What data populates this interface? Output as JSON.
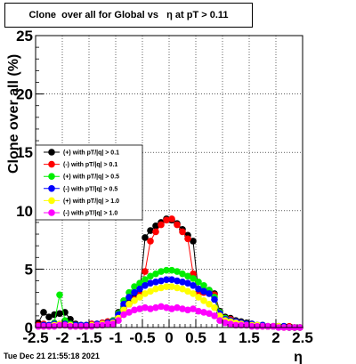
{
  "title": "Clone  over all for Global vs   η at pT > 0.11",
  "footer": "Tue Dec 21 21:55:18 2021",
  "chart_data": {
    "type": "scatter",
    "title": "Clone  over all for Global vs   η at pT > 0.11",
    "xlabel": "η",
    "ylabel": "Clone  over all (%)",
    "xlim": [
      -2.5,
      2.5
    ],
    "ylim": [
      0,
      25
    ],
    "x_ticks": [
      "-2.5",
      "-2",
      "-1.5",
      "-1",
      "-0.5",
      "0",
      "0.5",
      "1",
      "1.5",
      "2",
      "2.5"
    ],
    "y_ticks": [
      "0",
      "5",
      "10",
      "15",
      "20",
      "25"
    ],
    "grid": true,
    "legend_position": "center-left",
    "series": [
      {
        "name": "(+) with pT/|q| > 0.1",
        "color": "#000000",
        "x": [
          -2.45,
          -2.35,
          -2.25,
          -2.15,
          -2.05,
          -1.95,
          -1.85,
          -1.75,
          -1.65,
          -1.55,
          -1.45,
          -1.35,
          -1.25,
          -1.15,
          -1.05,
          -0.95,
          -0.85,
          -0.75,
          -0.65,
          -0.55,
          -0.45,
          -0.35,
          -0.25,
          -0.15,
          -0.05,
          0.05,
          0.15,
          0.25,
          0.35,
          0.45,
          0.55,
          0.65,
          0.75,
          0.85,
          0.95,
          1.05,
          1.15,
          1.25,
          1.35,
          1.45,
          1.55,
          1.65,
          1.75,
          1.85,
          1.95,
          2.05,
          2.15,
          2.25,
          2.35,
          2.45
        ],
        "y": [
          0.4,
          1.3,
          0.9,
          1.1,
          1.2,
          1.3,
          0.7,
          0.3,
          0.2,
          0.2,
          0.3,
          0.3,
          0.4,
          0.5,
          0.6,
          1.3,
          1.8,
          2.1,
          2.6,
          2.9,
          7.7,
          8.3,
          8.7,
          9.0,
          9.3,
          9.2,
          8.9,
          8.4,
          7.9,
          7.4,
          3.0,
          3.1,
          3.2,
          2.9,
          1.4,
          0.9,
          0.8,
          0.6,
          0.5,
          0.4,
          0.3,
          0.2,
          0.2,
          0.1,
          0.1,
          0.1,
          0.1,
          0.0,
          0.0,
          0.0
        ]
      },
      {
        "name": "(-) with pT/|q| > 0.1",
        "color": "#ff0000",
        "x": [
          -2.45,
          -2.35,
          -2.25,
          -2.15,
          -2.05,
          -1.95,
          -1.85,
          -1.75,
          -1.65,
          -1.55,
          -1.45,
          -1.35,
          -1.25,
          -1.15,
          -1.05,
          -0.95,
          -0.85,
          -0.75,
          -0.65,
          -0.55,
          -0.45,
          -0.35,
          -0.25,
          -0.15,
          -0.05,
          0.05,
          0.15,
          0.25,
          0.35,
          0.45,
          0.55,
          0.65,
          0.75,
          0.85,
          0.95,
          1.05,
          1.15,
          1.25,
          1.35,
          1.45,
          1.55,
          1.65,
          1.75,
          1.85,
          1.95,
          2.05,
          2.15,
          2.25,
          2.35,
          2.45
        ],
        "y": [
          0.2,
          0.3,
          0.2,
          0.2,
          0.2,
          0.3,
          0.2,
          0.2,
          0.2,
          0.2,
          0.3,
          0.3,
          0.4,
          0.5,
          0.6,
          1.2,
          1.6,
          2.0,
          2.4,
          2.8,
          4.8,
          7.4,
          8.2,
          8.8,
          9.2,
          9.3,
          8.8,
          8.2,
          7.6,
          4.6,
          2.9,
          3.0,
          3.1,
          2.8,
          1.3,
          0.8,
          0.7,
          0.5,
          0.4,
          0.3,
          0.3,
          0.2,
          0.2,
          0.1,
          0.1,
          0.1,
          0.1,
          0.1,
          0.0,
          0.0
        ]
      },
      {
        "name": "(+) with pT/|q| > 0.5",
        "color": "#00ee00",
        "x": [
          -2.45,
          -2.35,
          -2.25,
          -2.15,
          -2.05,
          -1.95,
          -1.85,
          -1.75,
          -1.65,
          -1.55,
          -1.45,
          -1.35,
          -1.25,
          -1.15,
          -1.05,
          -0.95,
          -0.85,
          -0.75,
          -0.65,
          -0.55,
          -0.45,
          -0.35,
          -0.25,
          -0.15,
          -0.05,
          0.05,
          0.15,
          0.25,
          0.35,
          0.45,
          0.55,
          0.65,
          0.75,
          0.85,
          0.95,
          1.05,
          1.15,
          1.25,
          1.35,
          1.45,
          1.55,
          1.65,
          1.75,
          1.85,
          1.95,
          2.05,
          2.15,
          2.25,
          2.35,
          2.45
        ],
        "y": [
          0.1,
          0.2,
          0.2,
          0.4,
          2.8,
          0.6,
          0.3,
          0.2,
          0.2,
          0.2,
          0.2,
          0.3,
          0.3,
          0.4,
          0.6,
          1.2,
          2.3,
          3.0,
          3.5,
          3.8,
          4.1,
          4.4,
          4.6,
          4.8,
          4.9,
          4.9,
          4.8,
          4.6,
          4.4,
          4.2,
          3.9,
          3.6,
          3.2,
          2.6,
          1.3,
          0.8,
          0.6,
          0.5,
          0.4,
          0.3,
          0.3,
          0.2,
          0.2,
          0.1,
          0.1,
          0.1,
          0.1,
          0.0,
          0.0,
          0.0
        ]
      },
      {
        "name": "(-) with pT/|q| > 0.5",
        "color": "#0000ff",
        "x": [
          -2.45,
          -2.35,
          -2.25,
          -2.15,
          -2.05,
          -1.95,
          -1.85,
          -1.75,
          -1.65,
          -1.55,
          -1.45,
          -1.35,
          -1.25,
          -1.15,
          -1.05,
          -0.95,
          -0.85,
          -0.75,
          -0.65,
          -0.55,
          -0.45,
          -0.35,
          -0.25,
          -0.15,
          -0.05,
          0.05,
          0.15,
          0.25,
          0.35,
          0.45,
          0.55,
          0.65,
          0.75,
          0.85,
          0.95,
          1.05,
          1.15,
          1.25,
          1.35,
          1.45,
          1.55,
          1.65,
          1.75,
          1.85,
          1.95,
          2.05,
          2.15,
          2.25,
          2.35,
          2.45
        ],
        "y": [
          0.1,
          0.2,
          0.2,
          0.3,
          0.3,
          0.3,
          0.2,
          0.2,
          0.2,
          0.2,
          0.2,
          0.3,
          0.3,
          0.4,
          0.5,
          1.1,
          2.0,
          2.6,
          3.0,
          3.3,
          3.6,
          3.8,
          3.9,
          4.0,
          4.1,
          4.1,
          4.0,
          3.9,
          3.8,
          3.6,
          3.3,
          3.1,
          2.9,
          2.4,
          1.2,
          0.7,
          0.6,
          0.5,
          0.4,
          0.3,
          0.3,
          0.2,
          0.2,
          0.1,
          0.1,
          0.1,
          0.1,
          0.0,
          0.0,
          0.0
        ]
      },
      {
        "name": "(+) with pT/|q| > 1.0",
        "color": "#ffff00",
        "x": [
          -2.45,
          -2.35,
          -2.25,
          -2.15,
          -2.05,
          -1.95,
          -1.85,
          -1.75,
          -1.65,
          -1.55,
          -1.45,
          -1.35,
          -1.25,
          -1.15,
          -1.05,
          -0.95,
          -0.85,
          -0.75,
          -0.65,
          -0.55,
          -0.45,
          -0.35,
          -0.25,
          -0.15,
          -0.05,
          0.05,
          0.15,
          0.25,
          0.35,
          0.45,
          0.55,
          0.65,
          0.75,
          0.85,
          0.95,
          1.05,
          1.15,
          1.25,
          1.35,
          1.45,
          1.55,
          1.65,
          1.75,
          1.85,
          1.95,
          2.05,
          2.15,
          2.25,
          2.35,
          2.45
        ],
        "y": [
          0.1,
          0.1,
          0.1,
          0.2,
          0.3,
          0.2,
          0.2,
          0.1,
          0.1,
          0.1,
          0.2,
          0.2,
          0.3,
          0.3,
          0.4,
          0.8,
          1.5,
          2.0,
          2.3,
          2.6,
          2.9,
          3.1,
          3.3,
          3.4,
          3.5,
          3.5,
          3.4,
          3.3,
          3.1,
          2.9,
          2.6,
          2.3,
          2.0,
          1.7,
          1.0,
          0.6,
          0.5,
          0.4,
          0.3,
          0.2,
          0.2,
          0.2,
          0.1,
          0.1,
          0.1,
          0.1,
          0.0,
          0.0,
          0.0,
          0.0
        ]
      },
      {
        "name": "(-) with pT/|q| > 1.0",
        "color": "#ff00ff",
        "x": [
          -2.45,
          -2.35,
          -2.25,
          -2.15,
          -2.05,
          -1.95,
          -1.85,
          -1.75,
          -1.65,
          -1.55,
          -1.45,
          -1.35,
          -1.25,
          -1.15,
          -1.05,
          -0.95,
          -0.85,
          -0.75,
          -0.65,
          -0.55,
          -0.45,
          -0.35,
          -0.25,
          -0.15,
          -0.05,
          0.05,
          0.15,
          0.25,
          0.35,
          0.45,
          0.55,
          0.65,
          0.75,
          0.85,
          0.95,
          1.05,
          1.15,
          1.25,
          1.35,
          1.45,
          1.55,
          1.65,
          1.75,
          1.85,
          1.95,
          2.05,
          2.15,
          2.25,
          2.35,
          2.45
        ],
        "y": [
          0.1,
          0.1,
          0.1,
          0.1,
          0.2,
          0.2,
          0.1,
          0.1,
          0.1,
          0.1,
          0.1,
          0.2,
          0.2,
          0.3,
          0.3,
          0.6,
          1.1,
          1.3,
          1.5,
          1.6,
          1.7,
          1.6,
          1.7,
          1.8,
          1.7,
          1.6,
          1.7,
          1.6,
          1.5,
          1.6,
          1.4,
          1.3,
          1.2,
          1.0,
          0.6,
          0.4,
          0.3,
          0.2,
          0.2,
          0.2,
          0.1,
          0.1,
          0.1,
          0.1,
          0.1,
          0.0,
          0.0,
          0.0,
          0.0,
          0.0
        ]
      }
    ]
  }
}
